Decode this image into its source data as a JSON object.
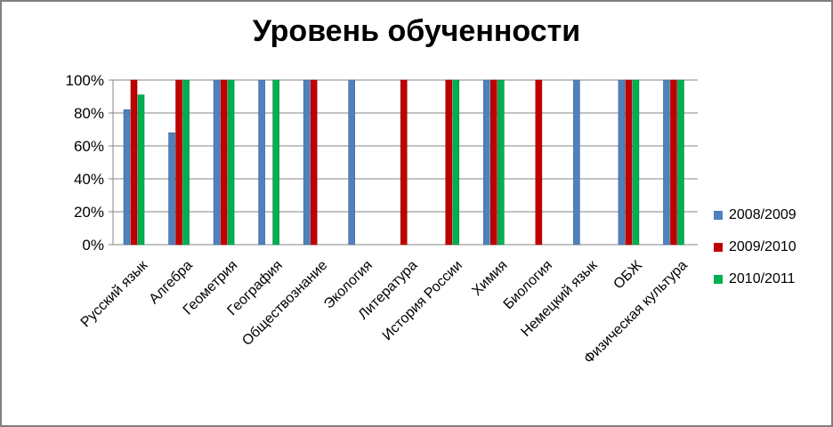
{
  "chart_data": {
    "type": "bar",
    "title": "Уровень обученности",
    "xlabel": "",
    "ylabel": "",
    "ylim": [
      0,
      100
    ],
    "yticks": [
      "0%",
      "20%",
      "40%",
      "60%",
      "80%",
      "100%"
    ],
    "grid": true,
    "legend": "right",
    "categories": [
      "Русский язык",
      "Алгебра",
      "Геометрия",
      "География",
      "Обществознание",
      "Экология",
      "Литература",
      "История России",
      "Химия",
      "Биология",
      "Немецкий язык",
      "ОБЖ",
      "Физическая культура"
    ],
    "series": [
      {
        "name": "2008/2009",
        "color": "#4f81bd",
        "values": [
          82,
          68,
          100,
          100,
          100,
          100,
          0,
          0,
          100,
          0,
          100,
          100,
          100
        ]
      },
      {
        "name": "2009/2010",
        "color": "#c00000",
        "values": [
          100,
          100,
          100,
          0,
          100,
          0,
          100,
          100,
          100,
          100,
          0,
          100,
          100
        ]
      },
      {
        "name": "2010/2011",
        "color": "#00b050",
        "values": [
          91,
          100,
          100,
          100,
          0,
          0,
          0,
          100,
          100,
          0,
          0,
          100,
          100
        ]
      }
    ]
  }
}
